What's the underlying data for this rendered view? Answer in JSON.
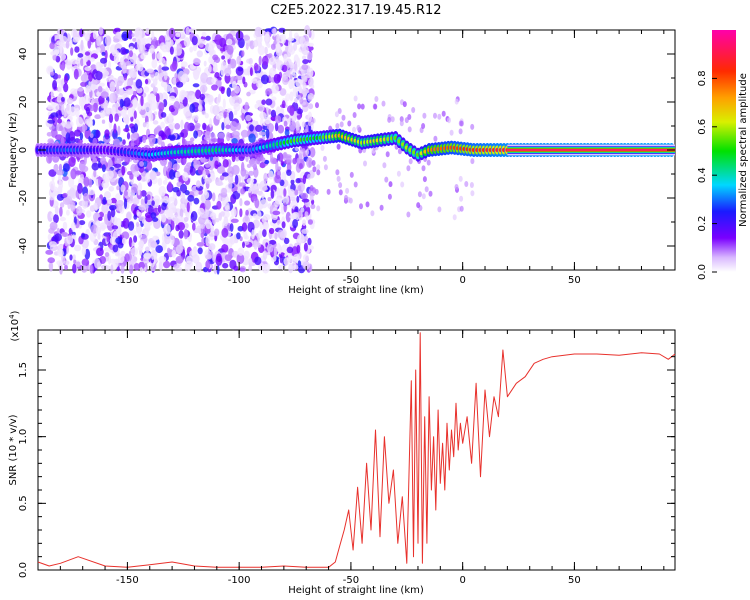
{
  "title": "C2E5.2022.317.19.45.R12",
  "colors": {
    "snr_line": "#e8312c",
    "axis": "#000000",
    "background": "#ffffff"
  },
  "chart_data": [
    {
      "type": "heatmap",
      "name": "spectrogram",
      "xlabel": "Height of straight line (km)",
      "ylabel": "Frequency (Hz)",
      "xlim": [
        -190,
        95
      ],
      "ylim": [
        -50,
        50
      ],
      "xticks": [
        -150,
        -100,
        -50,
        0,
        50
      ],
      "yticks": [
        -40,
        -20,
        0,
        20,
        40
      ],
      "xtick_labels": [
        "-150",
        "-100",
        "-50",
        "0",
        "50"
      ],
      "ytick_labels": [
        "-40",
        "-20",
        "0",
        "20",
        "40"
      ],
      "colorbar": {
        "label": "Normalized spectral amplitude",
        "range": [
          0,
          1
        ],
        "ticks": [
          0.0,
          0.2,
          0.4,
          0.6,
          0.8
        ],
        "tick_labels": [
          "0.0",
          "0.2",
          "0.4",
          "0.6",
          "0.8"
        ],
        "colormap": "rainbow (white-violet-blue-cyan-green-yellow-red-magenta)"
      },
      "ridge": [
        {
          "x": -190,
          "freq": 0,
          "amp": 0.25
        },
        {
          "x": -175,
          "freq": 0,
          "amp": 0.3
        },
        {
          "x": -160,
          "freq": 0,
          "amp": 0.2
        },
        {
          "x": -140,
          "freq": -2,
          "amp": 0.35
        },
        {
          "x": -130,
          "freq": -1,
          "amp": 0.4
        },
        {
          "x": -110,
          "freq": 0,
          "amp": 0.45
        },
        {
          "x": -95,
          "freq": 0,
          "amp": 0.3
        },
        {
          "x": -75,
          "freq": 4,
          "amp": 0.55
        },
        {
          "x": -65,
          "freq": 5,
          "amp": 0.5
        },
        {
          "x": -55,
          "freq": 6,
          "amp": 0.7
        },
        {
          "x": -45,
          "freq": 3,
          "amp": 0.6
        },
        {
          "x": -38,
          "freq": 4,
          "amp": 0.65
        },
        {
          "x": -30,
          "freq": 5,
          "amp": 0.55
        },
        {
          "x": -25,
          "freq": 1,
          "amp": 0.6
        },
        {
          "x": -20,
          "freq": -2,
          "amp": 0.55
        },
        {
          "x": -15,
          "freq": 0,
          "amp": 0.75
        },
        {
          "x": -5,
          "freq": 1,
          "amp": 0.8
        },
        {
          "x": 5,
          "freq": 0,
          "amp": 0.85
        },
        {
          "x": 20,
          "freq": 0,
          "amp": 0.9
        },
        {
          "x": 95,
          "freq": 0,
          "amp": 0.95
        }
      ]
    },
    {
      "type": "line",
      "name": "snr",
      "xlabel": "Height of straight line (km)",
      "ylabel": "SNR (10 * v/v)",
      "y_multiplier_label": "(x10",
      "y_multiplier_exp": "4",
      "y_multiplier_close": ")",
      "xlim": [
        -190,
        95
      ],
      "ylim": [
        0,
        1.8
      ],
      "xticks": [
        -150,
        -100,
        -50,
        0,
        50
      ],
      "yticks": [
        0.0,
        0.5,
        1.0,
        1.5
      ],
      "xtick_labels": [
        "-150",
        "-100",
        "-50",
        "0",
        "50"
      ],
      "ytick_labels": [
        "0.0",
        "0.5",
        "1.0",
        "1.5"
      ],
      "series": [
        {
          "name": "SNR",
          "x": [
            -190,
            -185,
            -180,
            -172,
            -160,
            -150,
            -140,
            -130,
            -120,
            -110,
            -100,
            -90,
            -80,
            -70,
            -60,
            -57,
            -55,
            -53,
            -51,
            -49,
            -47,
            -45,
            -43,
            -41,
            -39,
            -37,
            -35,
            -33,
            -31,
            -29,
            -27,
            -25,
            -23,
            -22,
            -21,
            -20,
            -19,
            -18,
            -17,
            -16,
            -15,
            -14,
            -13,
            -12,
            -11,
            -10,
            -9,
            -8,
            -7,
            -6,
            -5,
            -4,
            -3,
            -2,
            -1,
            0,
            2,
            4,
            6,
            8,
            10,
            12,
            14,
            16,
            18,
            20,
            24,
            28,
            32,
            36,
            40,
            50,
            60,
            70,
            80,
            88,
            92,
            95
          ],
          "y": [
            0.06,
            0.03,
            0.05,
            0.1,
            0.03,
            0.02,
            0.04,
            0.06,
            0.03,
            0.02,
            0.02,
            0.02,
            0.03,
            0.02,
            0.02,
            0.06,
            0.18,
            0.3,
            0.45,
            0.15,
            0.62,
            0.2,
            0.8,
            0.3,
            1.05,
            0.25,
            1.0,
            0.5,
            0.75,
            0.2,
            0.55,
            0.05,
            1.42,
            0.1,
            1.5,
            0.2,
            1.78,
            0.05,
            1.15,
            0.2,
            1.3,
            0.6,
            1.0,
            0.45,
            1.2,
            0.65,
            0.95,
            0.6,
            1.1,
            0.75,
            1.05,
            0.85,
            1.25,
            0.9,
            1.1,
            0.95,
            1.15,
            0.8,
            1.4,
            0.7,
            1.35,
            1.0,
            1.3,
            1.15,
            1.65,
            1.3,
            1.4,
            1.45,
            1.55,
            1.58,
            1.6,
            1.62,
            1.62,
            1.61,
            1.63,
            1.62,
            1.58,
            1.62
          ]
        }
      ]
    }
  ]
}
